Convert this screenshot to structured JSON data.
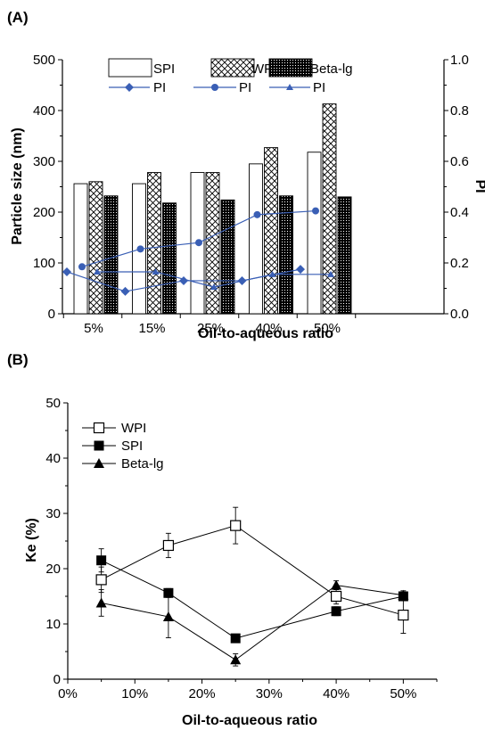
{
  "colors": {
    "pi": "#3a5fb5",
    "axis": "#000000",
    "bar_fill": "#ffffff"
  },
  "chart_data": [
    {
      "panel_label": "(A)",
      "type": "bar",
      "xlabel": "Oil-to-aqueous ratio",
      "ylabel": "Particle size (nm)",
      "y2label": "PI",
      "categories": [
        "5%",
        "15%",
        "25%",
        "40%",
        "50%"
      ],
      "ylim": [
        0,
        500
      ],
      "y_ticks": [
        "0",
        "100",
        "200",
        "300",
        "400",
        "500"
      ],
      "y2lim": [
        0.0,
        1.0
      ],
      "y2_ticks": [
        "0.0",
        "0.2",
        "0.4",
        "0.6",
        "0.8",
        "1.0"
      ],
      "bar_series": [
        {
          "name": "SPI",
          "pattern": "empty",
          "values": [
            256,
            256,
            278,
            295,
            318
          ]
        },
        {
          "name": "WPI",
          "pattern": "crosshatch",
          "values": [
            260,
            278,
            278,
            327,
            413
          ]
        },
        {
          "name": "Beta-lg",
          "pattern": "dotted-dark",
          "values": [
            232,
            218,
            224,
            232,
            230
          ]
        }
      ],
      "line_series": [
        {
          "name": "PI",
          "marker": "diamond",
          "values": [
            0.165,
            0.088,
            0.13,
            0.13,
            0.175
          ]
        },
        {
          "name": "PI",
          "marker": "circle",
          "values": [
            0.185,
            0.255,
            0.28,
            0.39,
            0.405
          ]
        },
        {
          "name": "PI",
          "marker": "triangle",
          "values": [
            0.165,
            0.165,
            0.105,
            0.155,
            0.155
          ]
        }
      ],
      "legend_position": "top"
    },
    {
      "panel_label": "(B)",
      "type": "line",
      "xlabel": "Oil-to-aqueous ratio",
      "ylabel": "Ke (%)",
      "x": [
        5,
        15,
        25,
        40,
        50
      ],
      "xlim": [
        0,
        55
      ],
      "x_ticks": [
        "0%",
        "10%",
        "20%",
        "30%",
        "40%",
        "50%"
      ],
      "ylim": [
        0,
        50
      ],
      "y_ticks": [
        "0",
        "10",
        "20",
        "30",
        "40",
        "50"
      ],
      "series": [
        {
          "name": "WPI",
          "marker": "open-square",
          "values": [
            18.0,
            24.2,
            27.8,
            15.0,
            11.6
          ],
          "errors": [
            2.3,
            2.2,
            3.3,
            1.4,
            3.3
          ]
        },
        {
          "name": "SPI",
          "marker": "filled-square",
          "values": [
            21.5,
            15.6,
            7.4,
            12.3,
            15.0
          ],
          "errors": [
            2.1,
            0.8,
            0.5,
            0.8,
            0.8
          ]
        },
        {
          "name": "Beta-lg",
          "marker": "filled-triangle",
          "values": [
            13.8,
            11.3,
            3.5,
            17.0,
            15.2
          ],
          "errors": [
            2.4,
            3.8,
            1.1,
            0.8,
            0.8
          ]
        }
      ],
      "legend_position": "top-left"
    }
  ]
}
